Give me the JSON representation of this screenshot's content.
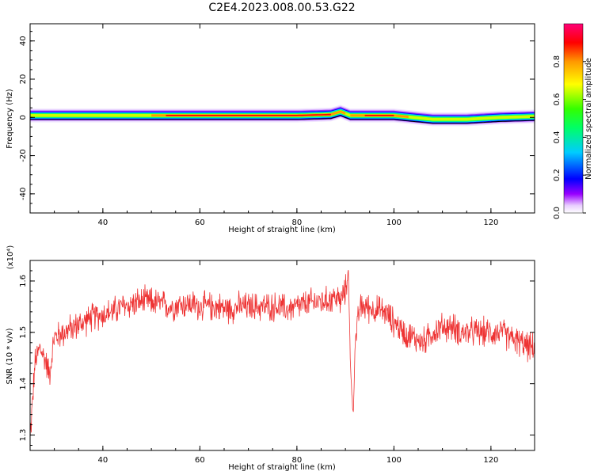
{
  "title": "C2E4.2023.008.00.53.G22",
  "chart_data": [
    {
      "type": "heatmap",
      "xlabel": "Height of straight line (km)",
      "ylabel": "Frequency (Hz)",
      "xlim": [
        25,
        129
      ],
      "ylim": [
        -50,
        49
      ],
      "xticks": [
        40,
        60,
        80,
        100,
        120
      ],
      "yticks": [
        -40,
        -20,
        0,
        20,
        40
      ],
      "colorbar": {
        "label": "Normalized spectral amplitude",
        "range": [
          0,
          1
        ],
        "ticks": [
          0.0,
          0.2,
          0.4,
          0.6,
          0.8
        ],
        "tick_labels": [
          "0.0",
          "0.2",
          "0.4",
          "0.6",
          "0.8"
        ],
        "colormap": "rainbow"
      },
      "band_center_hz": [
        [
          25,
          1
        ],
        [
          40,
          1
        ],
        [
          60,
          1
        ],
        [
          80,
          1
        ],
        [
          87,
          1.5
        ],
        [
          89,
          3
        ],
        [
          91,
          1
        ],
        [
          100,
          1
        ],
        [
          104,
          0
        ],
        [
          108,
          -1
        ],
        [
          115,
          -1
        ],
        [
          122,
          0
        ],
        [
          129,
          0.5
        ]
      ],
      "band_halfwidth_hz": 2.5,
      "peak_region_km": [
        [
          50,
          90
        ],
        [
          91,
          103
        ]
      ]
    },
    {
      "type": "line",
      "xlabel": "Height of straight line (km)",
      "ylabel": "SNR (10 * v/v)",
      "scale_label": "(x10⁴)",
      "xlim": [
        25,
        129
      ],
      "ylim": [
        1.27,
        1.64
      ],
      "xticks": [
        40,
        60,
        80,
        100,
        120
      ],
      "yticks": [
        1.3,
        1.4,
        1.5,
        1.6
      ],
      "ytick_labels": [
        "1.3",
        "1.4",
        "1.5",
        "1.6"
      ],
      "color": "#ee3333",
      "series": [
        {
          "x": [
            25,
            26,
            27,
            28,
            29,
            30,
            32,
            34,
            36,
            38,
            40,
            42,
            44,
            46,
            48,
            50,
            52,
            54,
            56,
            58,
            60,
            62,
            64,
            66,
            68,
            70,
            72,
            74,
            76,
            78,
            80,
            82,
            84,
            86,
            88,
            89,
            90,
            90.6,
            91,
            91.6,
            92,
            93,
            94,
            96,
            98,
            100,
            102,
            104,
            106,
            108,
            110,
            112,
            114,
            116,
            118,
            120,
            122,
            124,
            126,
            128,
            129
          ],
          "y": [
            1.29,
            1.44,
            1.47,
            1.45,
            1.42,
            1.49,
            1.5,
            1.51,
            1.52,
            1.53,
            1.535,
            1.54,
            1.55,
            1.555,
            1.56,
            1.56,
            1.555,
            1.55,
            1.555,
            1.555,
            1.55,
            1.55,
            1.55,
            1.545,
            1.55,
            1.55,
            1.55,
            1.55,
            1.55,
            1.545,
            1.55,
            1.555,
            1.56,
            1.56,
            1.57,
            1.56,
            1.58,
            1.62,
            1.45,
            1.33,
            1.48,
            1.55,
            1.55,
            1.545,
            1.54,
            1.52,
            1.5,
            1.49,
            1.48,
            1.5,
            1.51,
            1.51,
            1.5,
            1.5,
            1.5,
            1.5,
            1.5,
            1.49,
            1.48,
            1.47,
            1.47
          ],
          "noise_amplitude": 0.025
        }
      ]
    }
  ]
}
